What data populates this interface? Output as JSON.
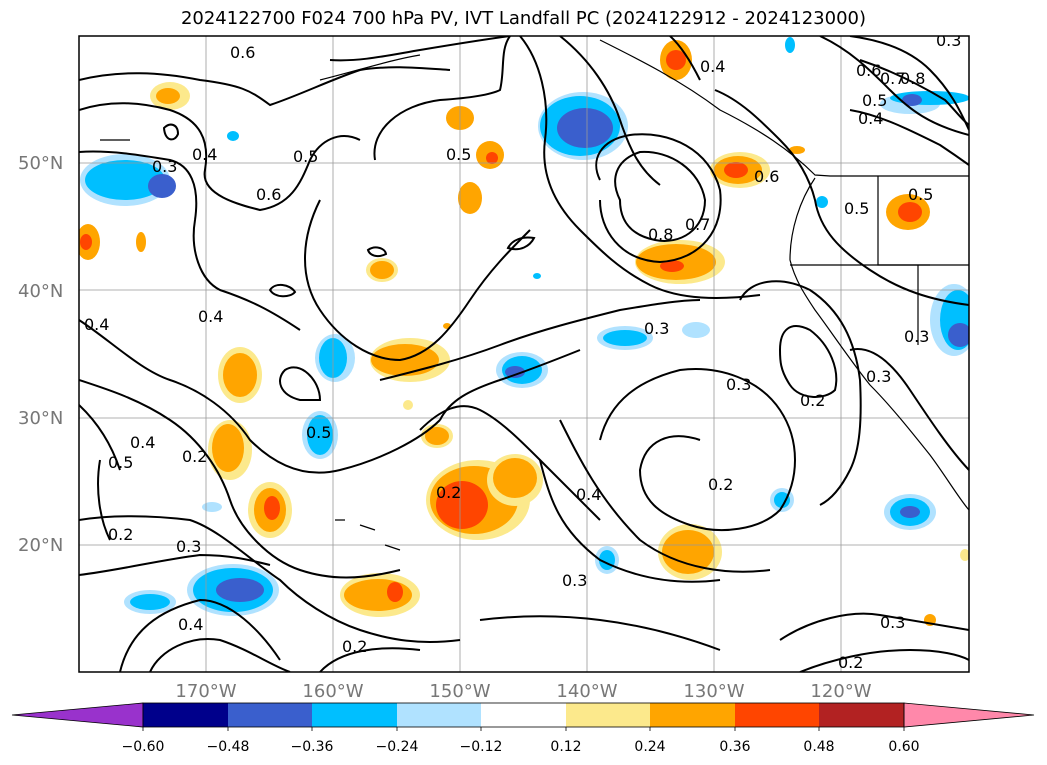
{
  "title": "2024122700 F024 700 hPa PV, IVT Landfall PC (2024122912 - 2024123000)",
  "map": {
    "lat_ticks": [
      "50°N",
      "40°N",
      "30°N",
      "20°N"
    ],
    "lon_ticks": [
      "170°W",
      "160°W",
      "150°W",
      "140°W",
      "130°W",
      "120°W"
    ],
    "contour_labels": [
      "0.6",
      "0.4",
      "0.5",
      "0.6",
      "0.3",
      "0.5",
      "0.4",
      "0.8",
      "0.7",
      "0.6",
      "0.5",
      "0.8",
      "0.7",
      "0.6",
      "0.5",
      "0.4",
      "0.3",
      "0.4",
      "0.5",
      "0.4",
      "0.5",
      "0.3",
      "0.3",
      "0.2",
      "0.2",
      "0.2",
      "0.3",
      "0.4",
      "0.3",
      "0.2",
      "0.4",
      "0.2",
      "0.3",
      "0.2",
      "0.4",
      "0.5",
      "0.3",
      "0.3",
      "0.2"
    ]
  },
  "colorbar": {
    "ticks": [
      "−0.60",
      "−0.48",
      "−0.36",
      "−0.24",
      "−0.12",
      "0.12",
      "0.24",
      "0.36",
      "0.48",
      "0.60"
    ],
    "colors": [
      "#9932cc",
      "#00008b",
      "#3a5fcd",
      "#00bfff",
      "#b0e2ff",
      "#ffffff",
      "#fce98c",
      "#ffa500",
      "#ff4500",
      "#b22222",
      "#ff88aa"
    ]
  }
}
